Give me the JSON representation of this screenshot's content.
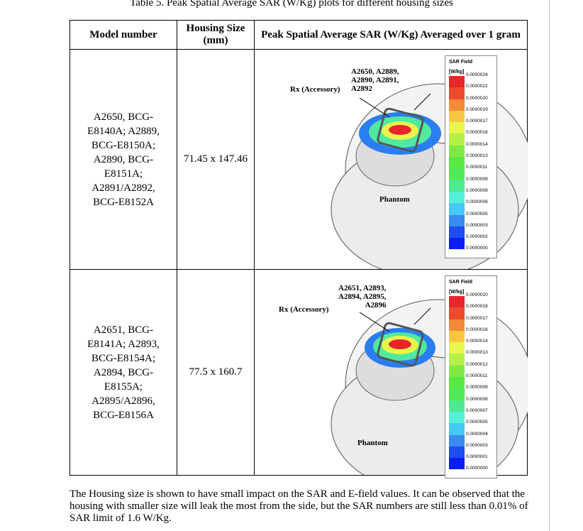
{
  "caption": "Table 5. Peak Spatial Average SAR (W/Kg) plots for different housing sizes",
  "headers": [
    "Model number",
    "Housing Size (mm)",
    "Peak Spatial Average SAR (W/Kg) Averaged over 1 gram"
  ],
  "rows": [
    {
      "model": [
        "A2650, BCG-",
        "E8140A; A2889,",
        "BCG-E8150A;",
        "A2890, BCG-",
        "E8151A;",
        "A2891/A2892,",
        "BCG-E8152A"
      ],
      "size": "71.45 x 147.46",
      "legend_title": "SAR Field",
      "legend_unit": "[W/kg]",
      "legend_values": [
        "0.0000024",
        "0.0000022",
        "0.0000020",
        "0.0000019",
        "0.0000017",
        "0.0000016",
        "0.0000014",
        "0.0000013",
        "0.0000011",
        "0.0000009",
        "0.0000008",
        "0.0000006",
        "0.0000005",
        "0.0000003",
        "0.0000002",
        "0.0000000"
      ],
      "labels": {
        "devices": "A2650, A2889, A2890, A2891, A2892",
        "rx": "Rx (Accessory)",
        "phantom": "Phantom"
      }
    },
    {
      "model": [
        "A2651, BCG-",
        "E8141A; A2893,",
        "BCG-E8154A;",
        "A2894, BCG-",
        "E8155A;",
        "A2895/A2896,",
        "BCG-E8156A"
      ],
      "size": "77.5 x 160.7",
      "legend_title": "SAR Field",
      "legend_unit": "[W/kg]",
      "legend_values": [
        "0.0000020",
        "0.0000018",
        "0.0000017",
        "0.0000016",
        "0.0000014",
        "0.0000013",
        "0.0000012",
        "0.0000011",
        "0.0000009",
        "0.0000008",
        "0.0000007",
        "0.0000005",
        "0.0000004",
        "0.0000003",
        "0.0000001",
        "0.0000000"
      ],
      "labels": {
        "devices": "A2651, A2893, A2894, A2895, A2896",
        "rx": "Rx (Accessory)",
        "phantom": "Phantom"
      }
    }
  ],
  "colorscale": [
    "#e8262a",
    "#ee4a2c",
    "#f28a3a",
    "#f8c642",
    "#e8f64e",
    "#b4f048",
    "#7ee845",
    "#5ae845",
    "#52e858",
    "#50e890",
    "#56f0d8",
    "#48c8f4",
    "#3a8cf0",
    "#1e4ef2",
    "#0a1ef4"
  ],
  "paragraph": "The Housing size is shown to have small impact on the SAR and E-field values. It can be observed that the housing with smaller size will leak the most from the side, but the SAR numbers are still less than 0.01% of SAR limit of 1.6 W/Kg."
}
